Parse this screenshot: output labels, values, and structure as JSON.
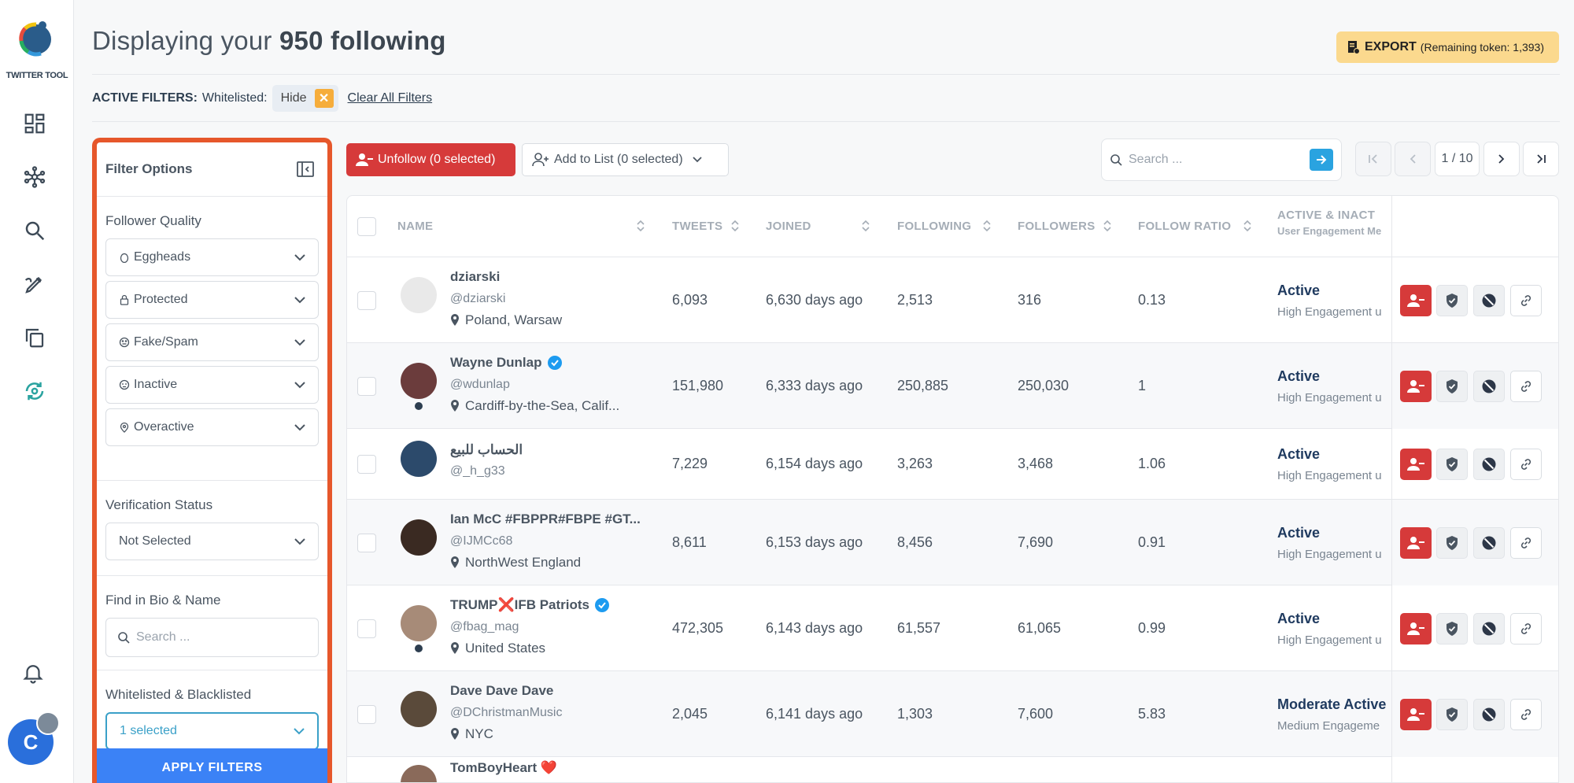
{
  "app": {
    "name": "TWITTER TOOL",
    "avatar_initial": "C"
  },
  "header": {
    "title_prefix": "Displaying your",
    "title_bold": "950 following",
    "export_label": "EXPORT",
    "export_sub": "(Remaining token: 1,393)"
  },
  "active_filters": {
    "label": "ACTIVE FILTERS:",
    "whitelisted_label": "Whitelisted:",
    "chip_value": "Hide",
    "clear_all": "Clear All Filters"
  },
  "filter_panel": {
    "title": "Filter Options",
    "follower_quality": {
      "heading": "Follower Quality",
      "options": [
        "Eggheads",
        "Protected",
        "Fake/Spam",
        "Inactive",
        "Overactive"
      ]
    },
    "verification": {
      "heading": "Verification Status",
      "value": "Not Selected"
    },
    "bio": {
      "heading": "Find in Bio & Name",
      "placeholder": "Search ..."
    },
    "whitelist": {
      "heading": "Whitelisted & Blacklisted",
      "value": "1 selected"
    },
    "apply": "APPLY FILTERS"
  },
  "toolbar": {
    "unfollow": "Unfollow (0 selected)",
    "add_to_list": "Add to List (0 selected)",
    "search_placeholder": "Search ...",
    "page": "1 / 10"
  },
  "table": {
    "headers": {
      "name": "NAME",
      "tweets": "TWEETS",
      "joined": "JOINED",
      "following": "FOLLOWING",
      "followers": "FOLLOWERS",
      "ratio": "FOLLOW RATIO",
      "active": "ACTIVE & INACT",
      "active_sub": "User Engagement Me"
    },
    "rows": [
      {
        "name": "dziarski",
        "handle": "@dziarski",
        "location": "Poland, Warsaw",
        "tweets": "6,093",
        "joined": "6,630 days ago",
        "following": "2,513",
        "followers": "316",
        "ratio": "0.13",
        "status": "Active",
        "engagement": "High Engagement u"
      },
      {
        "name": "Wayne Dunlap",
        "handle": "@wdunlap",
        "location": "Cardiff-by-the-Sea, Calif...",
        "tweets": "151,980",
        "joined": "6,333 days ago",
        "following": "250,885",
        "followers": "250,030",
        "ratio": "1",
        "status": "Active",
        "engagement": "High Engagement u"
      },
      {
        "name": "الحساب للبيع",
        "handle": "@_h_g33",
        "location": "",
        "tweets": "7,229",
        "joined": "6,154 days ago",
        "following": "3,263",
        "followers": "3,468",
        "ratio": "1.06",
        "status": "Active",
        "engagement": "High Engagement u"
      },
      {
        "name": "Ian McC #FBPPR#FBPE #GT...",
        "handle": "@IJMCc68",
        "location": "NorthWest England",
        "tweets": "8,611",
        "joined": "6,153 days ago",
        "following": "8,456",
        "followers": "7,690",
        "ratio": "0.91",
        "status": "Active",
        "engagement": "High Engagement u"
      },
      {
        "name": "TRUMP❌IFB Patriots",
        "handle": "@fbag_mag",
        "location": "United States",
        "tweets": "472,305",
        "joined": "6,143 days ago",
        "following": "61,557",
        "followers": "61,065",
        "ratio": "0.99",
        "status": "Active",
        "engagement": "High Engagement u"
      },
      {
        "name": "Dave Dave Dave",
        "handle": "@DChristmanMusic",
        "location": "NYC",
        "tweets": "2,045",
        "joined": "6,141 days ago",
        "following": "1,303",
        "followers": "7,600",
        "ratio": "5.83",
        "status": "Moderate Active",
        "engagement": "Medium Engageme"
      },
      {
        "name": "TomBoyHeart ❤️",
        "handle": "",
        "location": "",
        "tweets": "",
        "joined": "",
        "following": "",
        "followers": "",
        "ratio": "",
        "status": "",
        "engagement": ""
      }
    ]
  },
  "colors": {
    "accent_red": "#d63a3a",
    "panel_border": "#e6572b",
    "apply_blue": "#3b82f6",
    "export_yellow": "#fbd98e"
  }
}
